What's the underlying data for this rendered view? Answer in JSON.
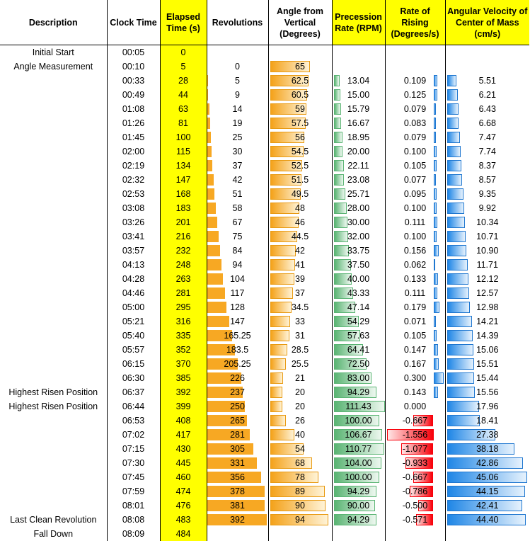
{
  "headers": {
    "description": "Description",
    "clock_time": "Clock Time",
    "elapsed_time": "Elapsed Time (s)",
    "revolutions": "Revolutions",
    "angle": "Angle from Vertical (Degrees)",
    "precession": "Precession Rate (RPM)",
    "rising": "Rate of Rising (Degrees/s)",
    "angular_velocity": "Angular Velocity of Center of Mass (cm/s)"
  },
  "colors": {
    "header_highlight": "#ffff00",
    "revolutions_bar": "#f7a823",
    "angle_bar": "#f4a21a",
    "precession_bar": "#5ab473",
    "rising_positive_bar": "#1f86e6",
    "rising_negative_bar": "#f8000a",
    "velocity_bar": "#1f86e6"
  },
  "rows": [
    {
      "description": "Initial Start",
      "clock": "00:05",
      "elapsed": "0",
      "revolutions": "",
      "angle": "",
      "precession": "",
      "rising": "",
      "velocity": ""
    },
    {
      "description": "Angle Measurement",
      "clock": "00:10",
      "elapsed": "5",
      "revolutions": "0",
      "angle": "65",
      "precession": "",
      "rising": "",
      "velocity": ""
    },
    {
      "description": "",
      "clock": "00:33",
      "elapsed": "28",
      "revolutions": "5",
      "angle": "62.5",
      "precession": "13.04",
      "rising": "0.109",
      "velocity": "5.51"
    },
    {
      "description": "",
      "clock": "00:49",
      "elapsed": "44",
      "revolutions": "9",
      "angle": "60.5",
      "precession": "15.00",
      "rising": "0.125",
      "velocity": "6.21"
    },
    {
      "description": "",
      "clock": "01:08",
      "elapsed": "63",
      "revolutions": "14",
      "angle": "59",
      "precession": "15.79",
      "rising": "0.079",
      "velocity": "6.43"
    },
    {
      "description": "",
      "clock": "01:26",
      "elapsed": "81",
      "revolutions": "19",
      "angle": "57.5",
      "precession": "16.67",
      "rising": "0.083",
      "velocity": "6.68"
    },
    {
      "description": "",
      "clock": "01:45",
      "elapsed": "100",
      "revolutions": "25",
      "angle": "56",
      "precession": "18.95",
      "rising": "0.079",
      "velocity": "7.47"
    },
    {
      "description": "",
      "clock": "02:00",
      "elapsed": "115",
      "revolutions": "30",
      "angle": "54.5",
      "precession": "20.00",
      "rising": "0.100",
      "velocity": "7.74"
    },
    {
      "description": "",
      "clock": "02:19",
      "elapsed": "134",
      "revolutions": "37",
      "angle": "52.5",
      "precession": "22.11",
      "rising": "0.105",
      "velocity": "8.37"
    },
    {
      "description": "",
      "clock": "02:32",
      "elapsed": "147",
      "revolutions": "42",
      "angle": "51.5",
      "precession": "23.08",
      "rising": "0.077",
      "velocity": "8.57"
    },
    {
      "description": "",
      "clock": "02:53",
      "elapsed": "168",
      "revolutions": "51",
      "angle": "49.5",
      "precession": "25.71",
      "rising": "0.095",
      "velocity": "9.35"
    },
    {
      "description": "",
      "clock": "03:08",
      "elapsed": "183",
      "revolutions": "58",
      "angle": "48",
      "precession": "28.00",
      "rising": "0.100",
      "velocity": "9.92"
    },
    {
      "description": "",
      "clock": "03:26",
      "elapsed": "201",
      "revolutions": "67",
      "angle": "46",
      "precession": "30.00",
      "rising": "0.111",
      "velocity": "10.34"
    },
    {
      "description": "",
      "clock": "03:41",
      "elapsed": "216",
      "revolutions": "75",
      "angle": "44.5",
      "precession": "32.00",
      "rising": "0.100",
      "velocity": "10.71"
    },
    {
      "description": "",
      "clock": "03:57",
      "elapsed": "232",
      "revolutions": "84",
      "angle": "42",
      "precession": "33.75",
      "rising": "0.156",
      "velocity": "10.90"
    },
    {
      "description": "",
      "clock": "04:13",
      "elapsed": "248",
      "revolutions": "94",
      "angle": "41",
      "precession": "37.50",
      "rising": "0.062",
      "velocity": "11.71"
    },
    {
      "description": "",
      "clock": "04:28",
      "elapsed": "263",
      "revolutions": "104",
      "angle": "39",
      "precession": "40.00",
      "rising": "0.133",
      "velocity": "12.12"
    },
    {
      "description": "",
      "clock": "04:46",
      "elapsed": "281",
      "revolutions": "117",
      "angle": "37",
      "precession": "43.33",
      "rising": "0.111",
      "velocity": "12.57"
    },
    {
      "description": "",
      "clock": "05:00",
      "elapsed": "295",
      "revolutions": "128",
      "angle": "34.5",
      "precession": "47.14",
      "rising": "0.179",
      "velocity": "12.98"
    },
    {
      "description": "",
      "clock": "05:21",
      "elapsed": "316",
      "revolutions": "147",
      "angle": "33",
      "precession": "54.29",
      "rising": "0.071",
      "velocity": "14.21"
    },
    {
      "description": "",
      "clock": "05:40",
      "elapsed": "335",
      "revolutions": "165.25",
      "angle": "31",
      "precession": "57.63",
      "rising": "0.105",
      "velocity": "14.39"
    },
    {
      "description": "",
      "clock": "05:57",
      "elapsed": "352",
      "revolutions": "183.5",
      "angle": "28.5",
      "precession": "64.41",
      "rising": "0.147",
      "velocity": "15.06"
    },
    {
      "description": "",
      "clock": "06:15",
      "elapsed": "370",
      "revolutions": "205.25",
      "angle": "25.5",
      "precession": "72.50",
      "rising": "0.167",
      "velocity": "15.51"
    },
    {
      "description": "",
      "clock": "06:30",
      "elapsed": "385",
      "revolutions": "226",
      "angle": "21",
      "precession": "83.00",
      "rising": "0.300",
      "velocity": "15.44"
    },
    {
      "description": "Highest Risen Position",
      "clock": "06:37",
      "elapsed": "392",
      "revolutions": "237",
      "angle": "20",
      "precession": "94.29",
      "rising": "0.143",
      "velocity": "15.56"
    },
    {
      "description": "Highest Risen Position",
      "clock": "06:44",
      "elapsed": "399",
      "revolutions": "250",
      "angle": "20",
      "precession": "111.43",
      "rising": "0.000",
      "velocity": "17.96"
    },
    {
      "description": "",
      "clock": "06:53",
      "elapsed": "408",
      "revolutions": "265",
      "angle": "26",
      "precession": "100.00",
      "rising": "-0.667",
      "velocity": "18.41"
    },
    {
      "description": "",
      "clock": "07:02",
      "elapsed": "417",
      "revolutions": "281",
      "angle": "40",
      "precession": "106.67",
      "rising": "-1.556",
      "velocity": "27.38"
    },
    {
      "description": "",
      "clock": "07:15",
      "elapsed": "430",
      "revolutions": "305",
      "angle": "54",
      "precession": "110.77",
      "rising": "-1.077",
      "velocity": "38.18"
    },
    {
      "description": "",
      "clock": "07:30",
      "elapsed": "445",
      "revolutions": "331",
      "angle": "68",
      "precession": "104.00",
      "rising": "-0.933",
      "velocity": "42.86"
    },
    {
      "description": "",
      "clock": "07:45",
      "elapsed": "460",
      "revolutions": "356",
      "angle": "78",
      "precession": "100.00",
      "rising": "-0.667",
      "velocity": "45.06"
    },
    {
      "description": "",
      "clock": "07:59",
      "elapsed": "474",
      "revolutions": "378",
      "angle": "89",
      "precession": "94.29",
      "rising": "-0.786",
      "velocity": "44.15"
    },
    {
      "description": "",
      "clock": "08:01",
      "elapsed": "476",
      "revolutions": "381",
      "angle": "90",
      "precession": "90.00",
      "rising": "-0.500",
      "velocity": "42.41"
    },
    {
      "description": "Last Clean Revolution",
      "clock": "08:08",
      "elapsed": "483",
      "revolutions": "392",
      "angle": "94",
      "precession": "94.29",
      "rising": "-0.571",
      "velocity": "44.40"
    },
    {
      "description": "Fall Down",
      "clock": "08:09",
      "elapsed": "484",
      "revolutions": "",
      "angle": "",
      "precession": "",
      "rising": "",
      "velocity": ""
    }
  ]
}
